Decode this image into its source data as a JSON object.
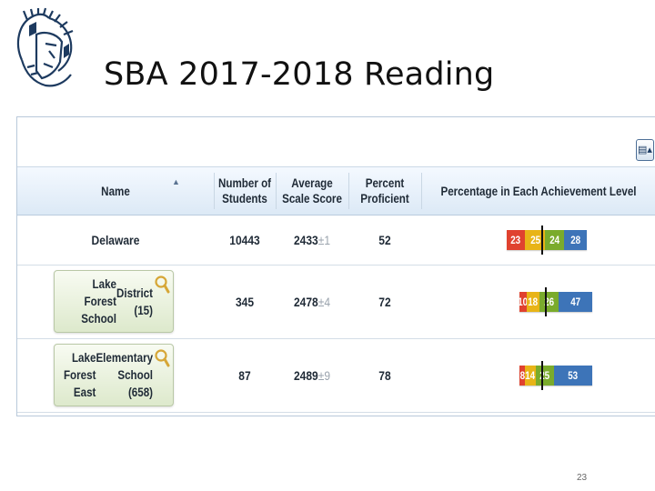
{
  "slide": {
    "title": "SBA 2017-2018 Reading",
    "page_number": "23",
    "logo_icon": "spartan-helmet-logo"
  },
  "table": {
    "headers": {
      "name": "Name",
      "students": [
        "Number of",
        "Students"
      ],
      "score": [
        "Average",
        "Scale Score"
      ],
      "proficient": [
        "Percent",
        "Proficient"
      ],
      "levels": "Percentage in Each Achievement Level"
    },
    "rows": [
      {
        "name": "Delaware",
        "name_lines": [
          "Delaware"
        ],
        "clickable": false,
        "students": "10443",
        "score": "2433",
        "margin": "±1",
        "proficient": "52",
        "levels": [
          23,
          25,
          24,
          28
        ]
      },
      {
        "name": "Lake Forest School District (15)",
        "name_lines": [
          "Lake Forest School",
          "District (15)"
        ],
        "clickable": true,
        "students": "345",
        "score": "2478",
        "margin": "±4",
        "proficient": "72",
        "levels": [
          10,
          18,
          26,
          47
        ]
      },
      {
        "name": "Lake Forest East Elementary School (658)",
        "name_lines": [
          "Lake Forest East",
          "Elementary School (658)"
        ],
        "clickable": true,
        "students": "87",
        "score": "2489",
        "margin": "±9",
        "proficient": "78",
        "levels": [
          8,
          14,
          25,
          53
        ]
      }
    ],
    "level_colors": [
      "#e0422f",
      "#e8b417",
      "#7aab2c",
      "#3d74b8"
    ]
  }
}
